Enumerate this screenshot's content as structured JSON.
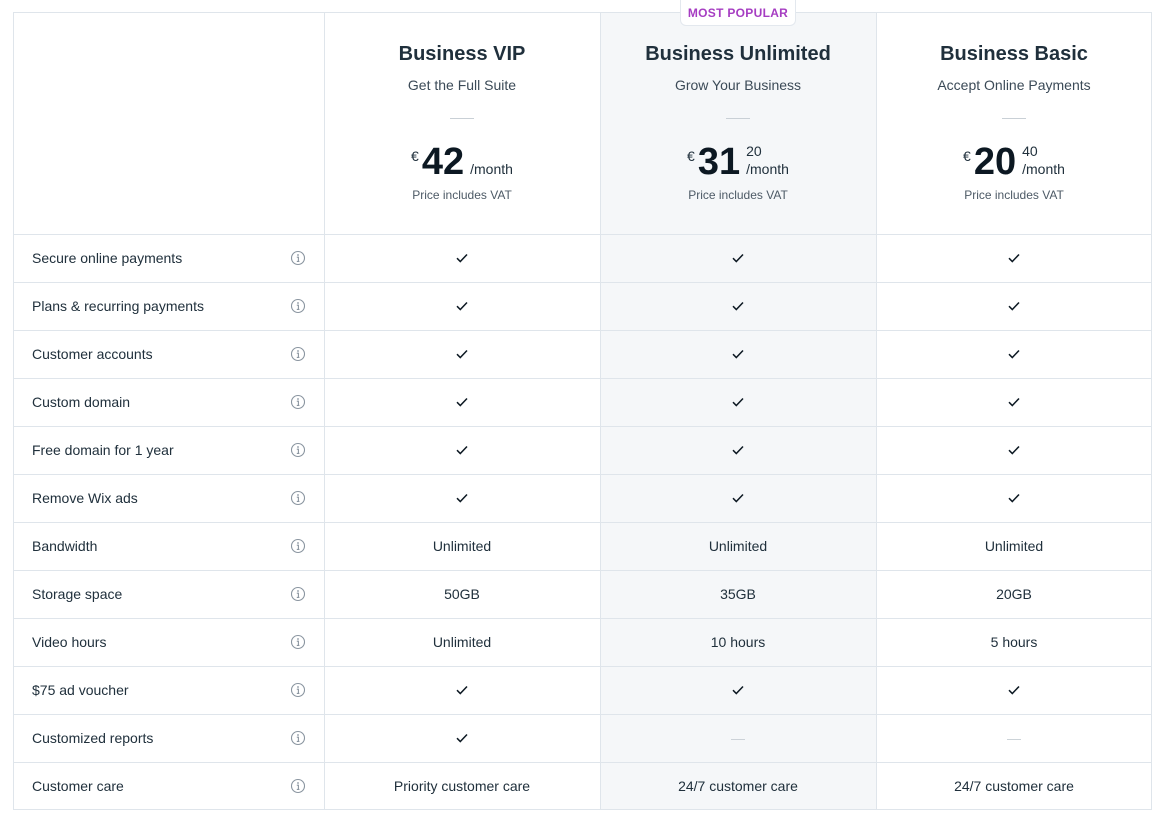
{
  "badge": "MOST POPULAR",
  "plans": [
    {
      "name": "Business VIP",
      "tagline": "Get the Full Suite",
      "currency": "€",
      "amount": "42",
      "cents": "",
      "per": "/month",
      "vat": "Price includes VAT"
    },
    {
      "name": "Business Unlimited",
      "tagline": "Grow Your Business",
      "currency": "€",
      "amount": "31",
      "cents": "20",
      "per": "/month",
      "vat": "Price includes VAT"
    },
    {
      "name": "Business Basic",
      "tagline": "Accept Online Payments",
      "currency": "€",
      "amount": "20",
      "cents": "40",
      "per": "/month",
      "vat": "Price includes VAT"
    }
  ],
  "rows": [
    {
      "label": "Secure online payments",
      "values": [
        "check",
        "check",
        "check"
      ]
    },
    {
      "label": "Plans & recurring payments",
      "values": [
        "check",
        "check",
        "check"
      ]
    },
    {
      "label": "Customer accounts",
      "values": [
        "check",
        "check",
        "check"
      ]
    },
    {
      "label": "Custom domain",
      "values": [
        "check",
        "check",
        "check"
      ]
    },
    {
      "label": "Free domain for 1 year",
      "values": [
        "check",
        "check",
        "check"
      ]
    },
    {
      "label": "Remove Wix ads",
      "values": [
        "check",
        "check",
        "check"
      ]
    },
    {
      "label": "Bandwidth",
      "values": [
        "Unlimited",
        "Unlimited",
        "Unlimited"
      ]
    },
    {
      "label": "Storage space",
      "values": [
        "50GB",
        "35GB",
        "20GB"
      ]
    },
    {
      "label": "Video hours",
      "values": [
        "Unlimited",
        "10 hours",
        "5 hours"
      ]
    },
    {
      "label": "$75 ad voucher",
      "values": [
        "check",
        "check",
        "check"
      ]
    },
    {
      "label": "Customized reports",
      "values": [
        "check",
        "dash",
        "dash"
      ]
    },
    {
      "label": "Customer care",
      "values": [
        "Priority customer care",
        "24/7 customer care",
        "24/7 customer care"
      ]
    }
  ],
  "icons": {
    "feature_info": "info-circle-icon",
    "included": "check-icon",
    "not_included": "dash-icon"
  },
  "colors": {
    "badge_text": "#a63dc2",
    "popular_column_bg": "#f5f7f9",
    "border": "#dfe5eb"
  }
}
